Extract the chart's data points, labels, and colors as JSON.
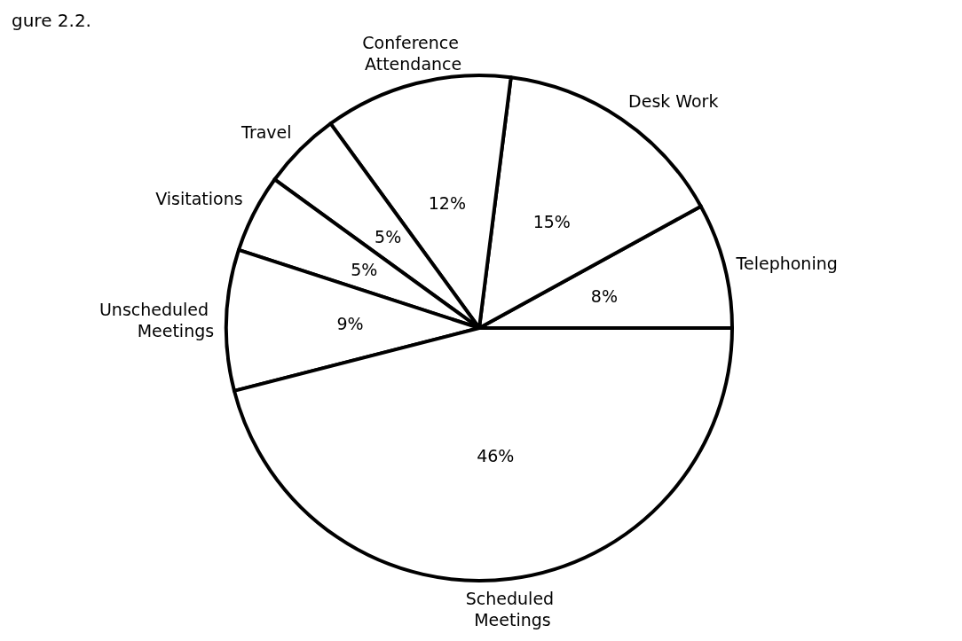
{
  "chart_data": {
    "type": "pie",
    "title": "gure 2.2.",
    "categories": [
      "Telephoning",
      "Desk Work",
      "Conference Attendance",
      "Travel",
      "Visitations",
      "Unscheduled Meetings",
      "Scheduled Meetings"
    ],
    "values": [
      8,
      15,
      12,
      5,
      5,
      9,
      46
    ],
    "value_labels": [
      "8%",
      "15%",
      "12%",
      "5%",
      "5%",
      "9%",
      "46%"
    ],
    "colors": [
      "#ffffff",
      "#ffffff",
      "#ffffff",
      "#ffffff",
      "#ffffff",
      "#ffffff",
      "#ffffff"
    ]
  }
}
